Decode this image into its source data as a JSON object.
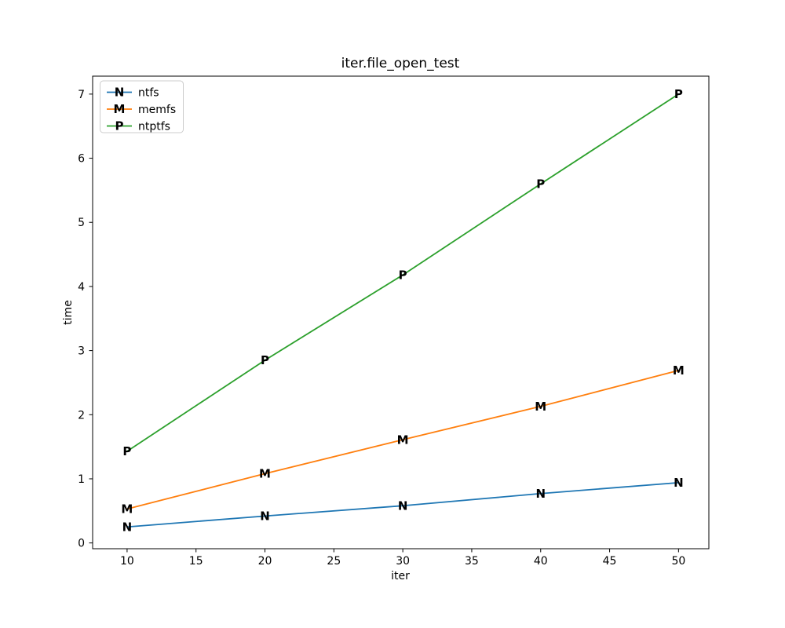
{
  "figure": {
    "background": "#ffffff",
    "text_color": "#000000",
    "spine_color": "#000000",
    "legend_border_color": "#cccccc"
  },
  "chart_data": {
    "type": "line",
    "title": "iter.file_open_test",
    "xlabel": "iter",
    "ylabel": "time",
    "x": [
      10,
      20,
      30,
      40,
      50
    ],
    "series": [
      {
        "name": "ntfs",
        "marker": "N",
        "color": "#1f77b4",
        "values": [
          0.25,
          0.42,
          0.58,
          0.77,
          0.94
        ]
      },
      {
        "name": "memfs",
        "marker": "M",
        "color": "#ff7f0e",
        "values": [
          0.53,
          1.08,
          1.61,
          2.13,
          2.69
        ]
      },
      {
        "name": "ntptfs",
        "marker": "P",
        "color": "#2ca02c",
        "values": [
          1.43,
          2.85,
          4.18,
          5.6,
          7.0
        ]
      }
    ],
    "xticks": [
      10,
      15,
      20,
      25,
      30,
      35,
      40,
      45,
      50
    ],
    "yticks": [
      0,
      1,
      2,
      3,
      4,
      5,
      6,
      7
    ],
    "xlim": [
      7.5,
      52.2
    ],
    "ylim": [
      -0.09,
      7.28
    ],
    "grid": false,
    "legend_position": "upper left",
    "legend_entries": [
      "ntfs",
      "memfs",
      "ntptfs"
    ]
  }
}
